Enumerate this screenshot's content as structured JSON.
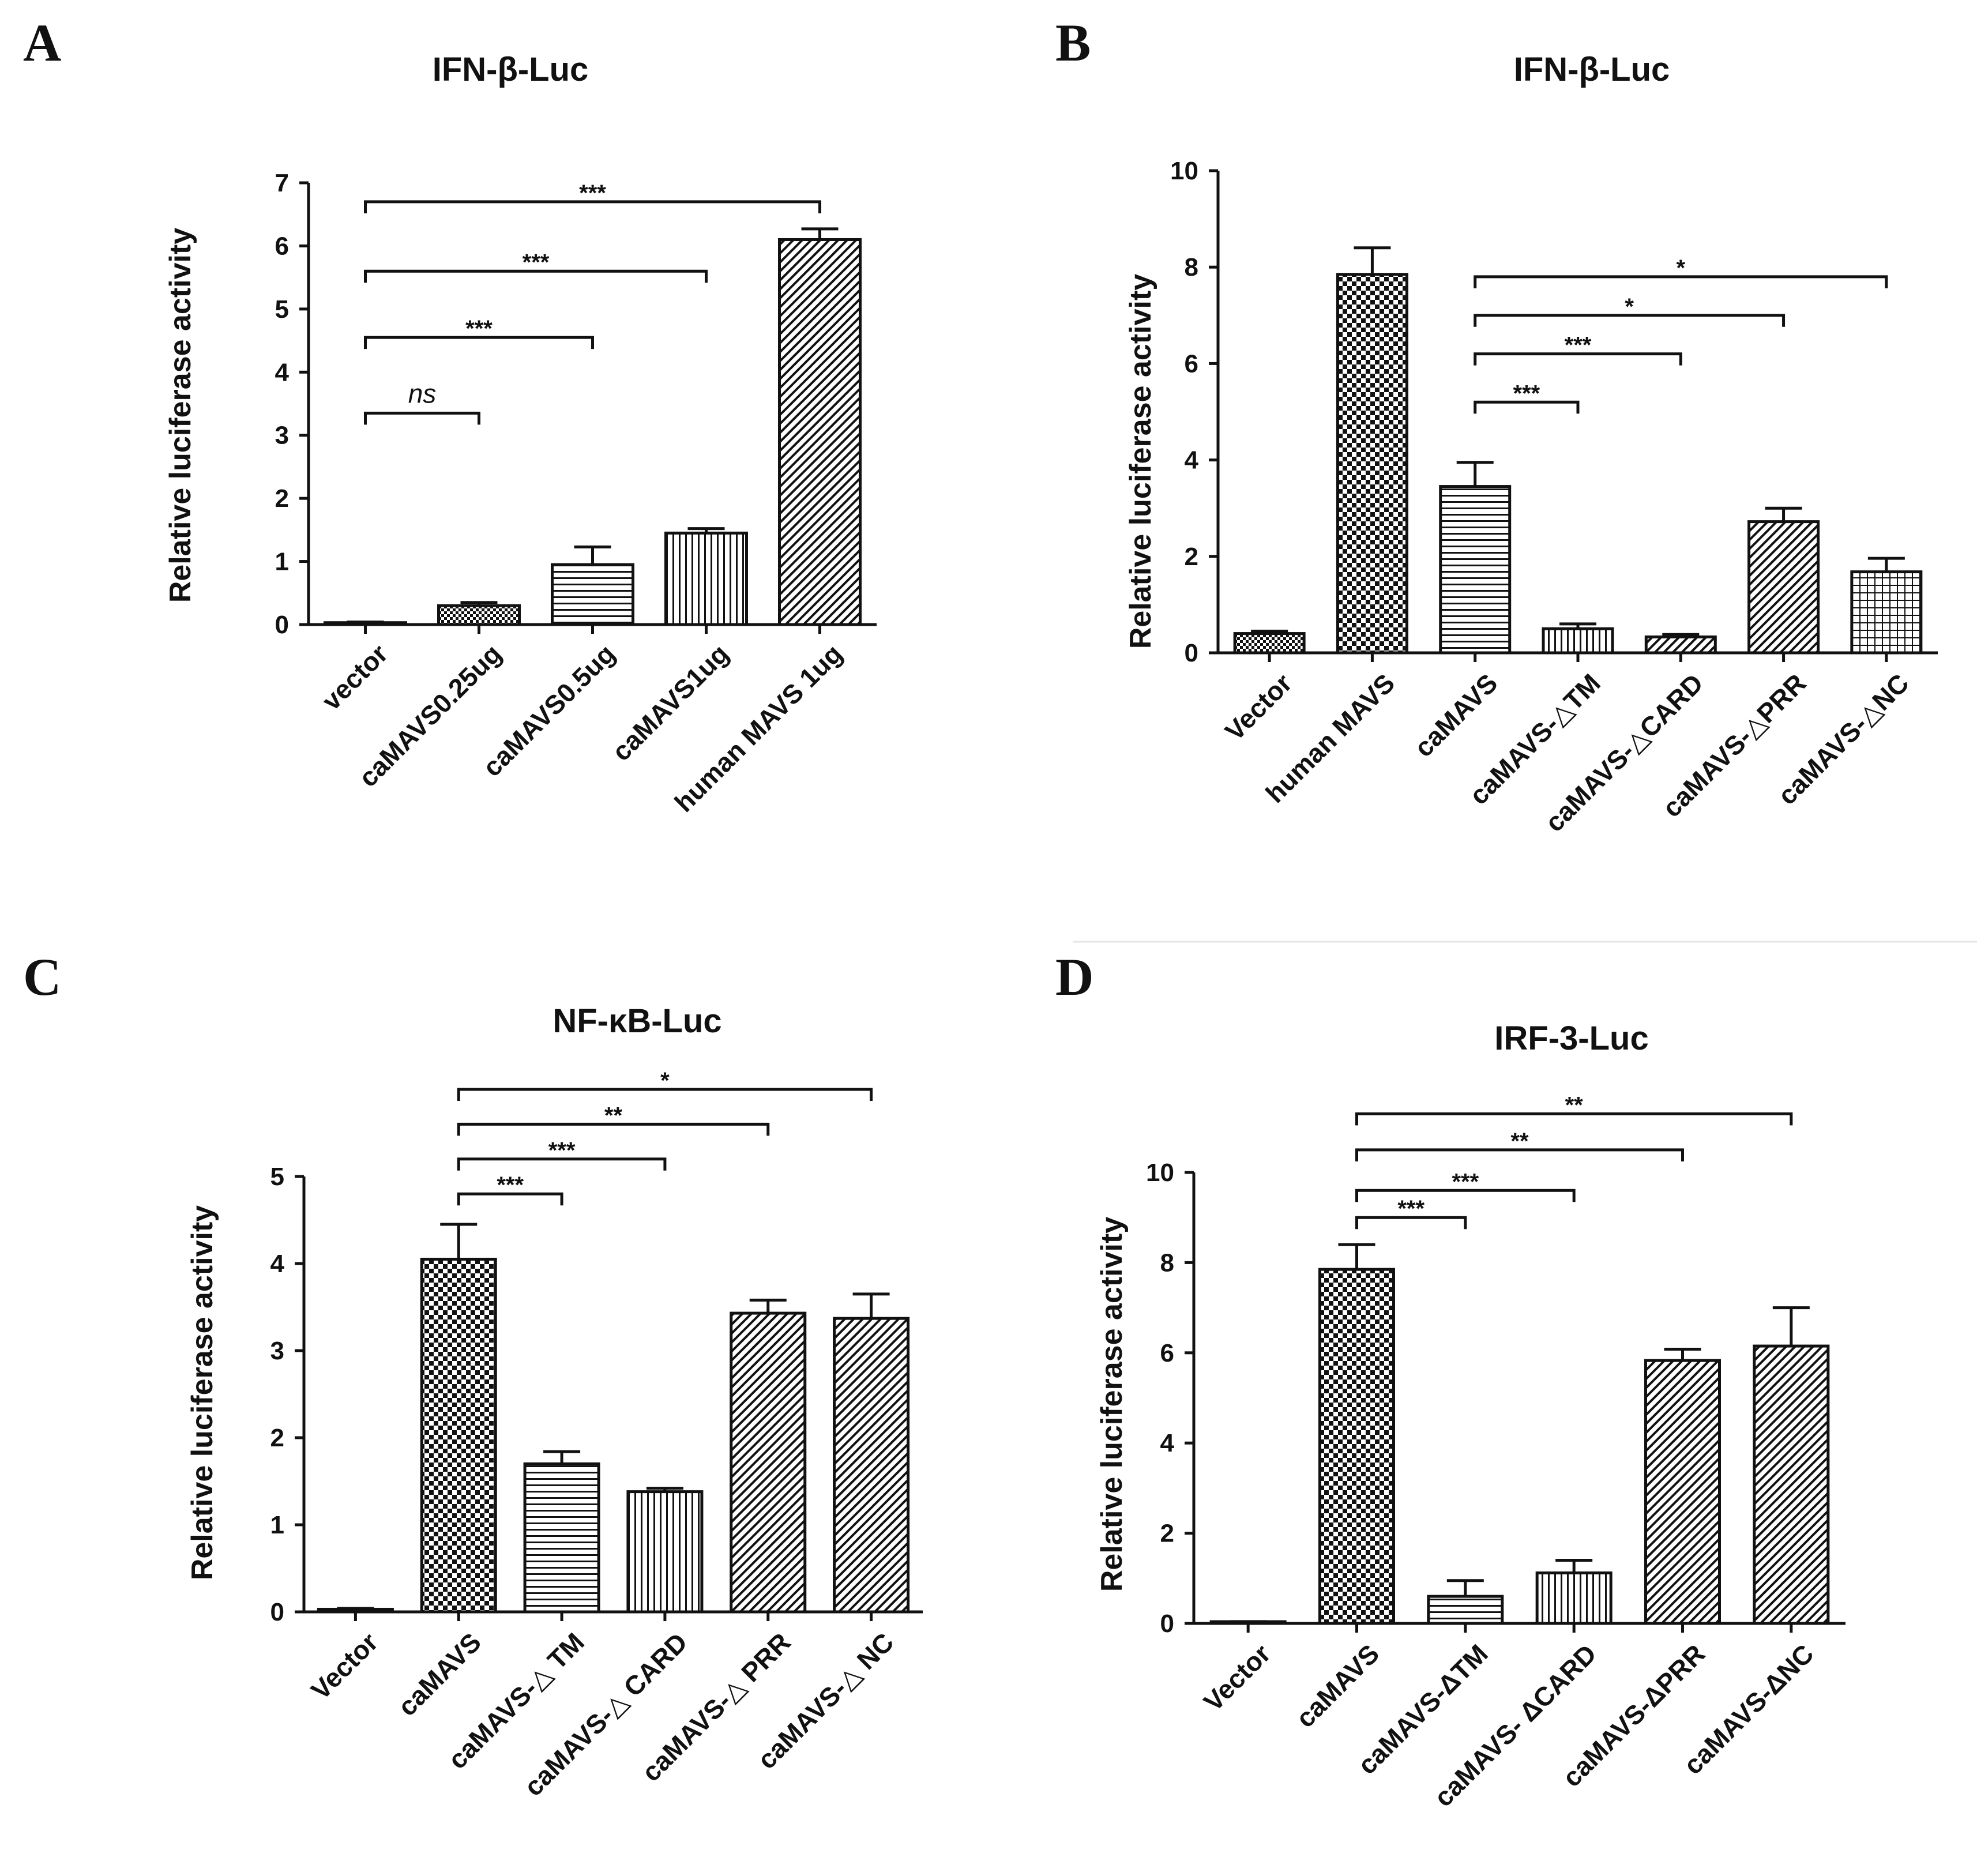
{
  "chart_data": [
    {
      "panel": "A",
      "type": "bar",
      "title": "IFN-β-Luc",
      "ylabel": "Relative luciferase activity",
      "xlabel": "",
      "ylim": [
        0,
        7
      ],
      "yticks": [
        0,
        1,
        2,
        3,
        4,
        5,
        6,
        7
      ],
      "categories": [
        "vector",
        "caMAVS0.25ug",
        "caMAVS0.5ug",
        "caMAVS1ug",
        "human MAVS 1ug"
      ],
      "values": [
        0.03,
        0.3,
        0.95,
        1.45,
        6.1
      ],
      "errors": [
        0.01,
        0.05,
        0.28,
        0.07,
        0.17
      ],
      "patterns": [
        "dense-check",
        "dense-check",
        "horizontal",
        "vertical",
        "diagonal"
      ],
      "comparisons": [
        {
          "from": 0,
          "to": 1,
          "label": "ns",
          "level": 3.35
        },
        {
          "from": 0,
          "to": 2,
          "label": "***",
          "level": 4.55
        },
        {
          "from": 0,
          "to": 3,
          "label": "***",
          "level": 5.6
        },
        {
          "from": 0,
          "to": 4,
          "label": "***",
          "level": 6.7
        }
      ]
    },
    {
      "panel": "B",
      "type": "bar",
      "title": "IFN-β-Luc",
      "ylabel": "Relative luciferase activity",
      "xlabel": "",
      "ylim": [
        0,
        10
      ],
      "yticks": [
        0,
        2,
        4,
        6,
        8,
        10
      ],
      "categories": [
        "Vector",
        "human MAVS",
        "caMAVS",
        "caMAVS-△TM",
        "caMAVS-△CARD",
        "caMAVS-△PRR",
        "caMAVS-△NC"
      ],
      "values": [
        0.4,
        7.85,
        3.45,
        0.5,
        0.33,
        2.72,
        1.68
      ],
      "errors": [
        0.05,
        0.55,
        0.5,
        0.1,
        0.05,
        0.28,
        0.28
      ],
      "patterns": [
        "dense-check",
        "checker",
        "horizontal",
        "vertical",
        "diagonal",
        "diagonal",
        "grid"
      ],
      "comparisons": [
        {
          "from": 2,
          "to": 3,
          "label": "***",
          "level": 5.2
        },
        {
          "from": 2,
          "to": 4,
          "label": "***",
          "level": 6.2
        },
        {
          "from": 2,
          "to": 5,
          "label": "*",
          "level": 7.0
        },
        {
          "from": 2,
          "to": 6,
          "label": "*",
          "level": 7.8
        }
      ]
    },
    {
      "panel": "C",
      "type": "bar",
      "title": "NF-κB-Luc",
      "ylabel": "Relative luciferase activity",
      "xlabel": "",
      "ylim": [
        0,
        5
      ],
      "yticks": [
        0,
        1,
        2,
        3,
        4,
        5
      ],
      "categories": [
        "Vector",
        "caMAVS",
        "caMAVS-△ TM",
        "caMAVS-△ CARD",
        "caMAVS-△ PRR",
        "caMAVS-△ NC"
      ],
      "values": [
        0.03,
        4.05,
        1.7,
        1.38,
        3.43,
        3.37
      ],
      "errors": [
        0.01,
        0.4,
        0.14,
        0.04,
        0.15,
        0.28
      ],
      "patterns": [
        "dense-check",
        "checker",
        "horizontal",
        "vertical",
        "diagonal",
        "diagonal"
      ],
      "comparisons": [
        {
          "from": 1,
          "to": 2,
          "label": "***",
          "level": 4.8
        },
        {
          "from": 1,
          "to": 3,
          "label": "***",
          "level": 5.2
        },
        {
          "from": 1,
          "to": 4,
          "label": "**",
          "level": 5.6
        },
        {
          "from": 1,
          "to": 5,
          "label": "*",
          "level": 6.0
        }
      ]
    },
    {
      "panel": "D",
      "type": "bar",
      "title": "IRF-3-Luc",
      "ylabel": "Relative luciferase activity",
      "xlabel": "",
      "ylim": [
        0,
        10
      ],
      "yticks": [
        0,
        2,
        4,
        6,
        8,
        10
      ],
      "categories": [
        "Vector",
        "caMAVS",
        "caMAVS-ΔTM",
        "caMAVS- ΔCARD",
        "caMAVS-ΔPRR",
        "caMAVS-ΔNC"
      ],
      "values": [
        0.03,
        7.85,
        0.6,
        1.12,
        5.83,
        6.15
      ],
      "errors": [
        0.01,
        0.55,
        0.35,
        0.28,
        0.25,
        0.85
      ],
      "patterns": [
        "dense-check",
        "checker",
        "horizontal",
        "vertical",
        "diagonal",
        "diagonal"
      ],
      "comparisons": [
        {
          "from": 1,
          "to": 2,
          "label": "***",
          "level": 9.0
        },
        {
          "from": 1,
          "to": 3,
          "label": "***",
          "level": 9.6
        },
        {
          "from": 1,
          "to": 4,
          "label": "**",
          "level": 10.5
        },
        {
          "from": 1,
          "to": 5,
          "label": "**",
          "level": 11.3
        }
      ]
    }
  ]
}
